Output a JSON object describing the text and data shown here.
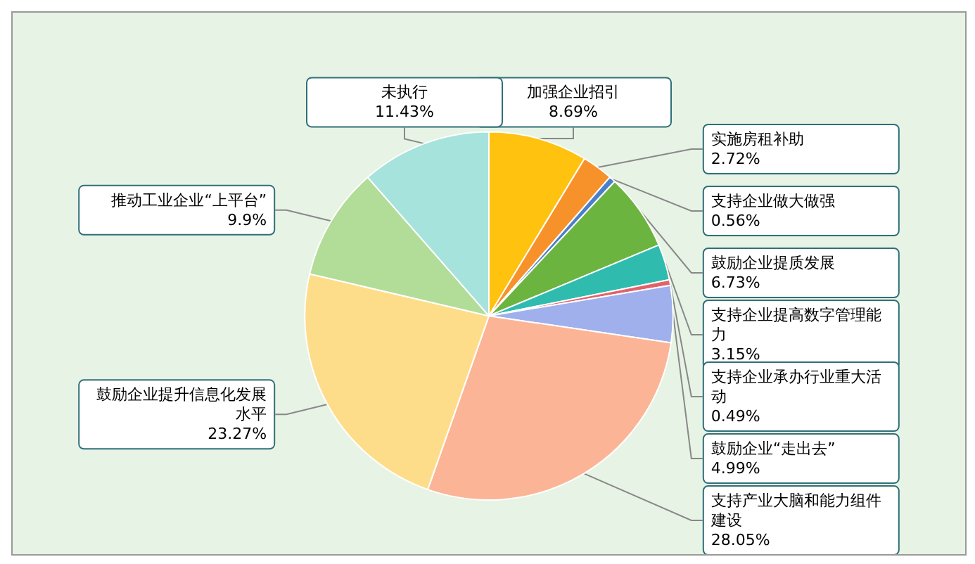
{
  "chart_data": {
    "type": "pie",
    "categories": [
      "加强企业招引",
      "实施房租补助",
      "支持企业做大做强",
      "鼓励企业提质发展",
      "支持企业提高数字管理能力",
      "支持企业承办行业重大活动",
      "鼓励企业“走出去”",
      "支持产业大脑和能力组件建设",
      "鼓励企业提升信息化发展水平",
      "推动工业企业“上平台”",
      "未执行"
    ],
    "values": [
      8.69,
      2.72,
      0.56,
      6.73,
      3.15,
      0.49,
      4.99,
      28.05,
      23.27,
      9.9,
      11.43
    ],
    "value_labels": [
      "8.69%",
      "2.72%",
      "0.56%",
      "6.73%",
      "3.15%",
      "0.49%",
      "4.99%",
      "28.05%",
      "23.27%",
      "9.9%",
      "11.43%"
    ],
    "colors": [
      "#ffc20e",
      "#f7922a",
      "#4a7fc9",
      "#6cb440",
      "#2fbcae",
      "#e2626a",
      "#9fb0ec",
      "#fbb596",
      "#fedd8a",
      "#b2dd98",
      "#a6e3dd"
    ],
    "legend": false
  }
}
